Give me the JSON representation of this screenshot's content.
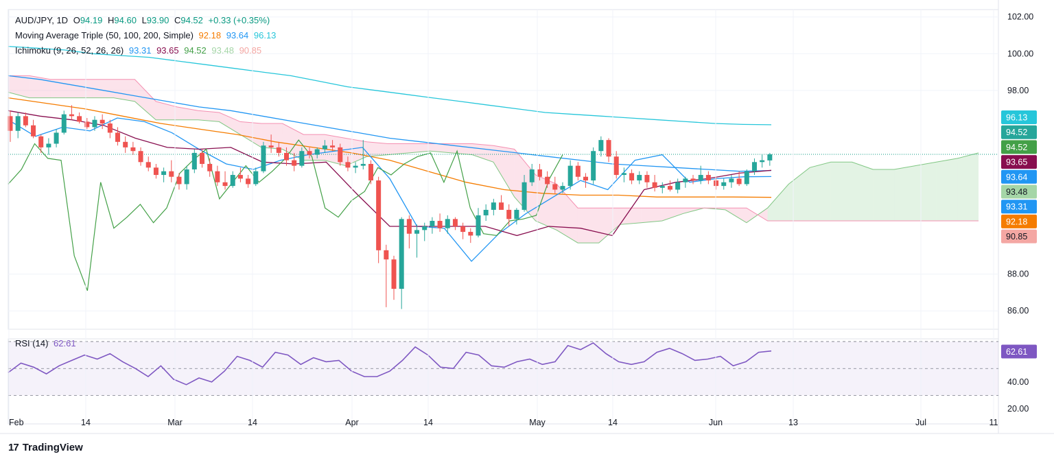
{
  "header": {
    "symbol": "AUD/JPY, 1D",
    "open_label": "O",
    "open": "94.19",
    "high_label": "H",
    "high": "94.60",
    "low_label": "L",
    "low": "93.90",
    "close_label": "C",
    "close": "94.52",
    "change": "+0.33 (+0.35%)"
  },
  "ma": {
    "label": "Moving Average Triple (50, 100, 200, Simple)",
    "v50": "92.18",
    "v100": "93.64",
    "v200": "96.13"
  },
  "ichimoku": {
    "label": "Ichimoku (9, 26, 52, 26, 26)",
    "conversion": "93.31",
    "base": "93.65",
    "lagging": "94.52",
    "leadA": "93.48",
    "leadB": "90.85"
  },
  "rsi": {
    "label": "RSI (14)",
    "value": "62.61"
  },
  "footer": {
    "brand": "TradingView",
    "logo": "17"
  },
  "colors": {
    "up": "#26a69a",
    "down": "#ef5350",
    "ma50": "#f57c00",
    "ma100": "#2196f3",
    "ma200": "#26c6da",
    "conversion": "#2196f3",
    "base": "#880e4f",
    "lagging": "#43a047",
    "spanA": "#81c784",
    "spanB": "#f48fb1",
    "rsi": "#7e57c2",
    "price": "#089981"
  },
  "chart_data": {
    "type": "candlestick",
    "title": "AUD/JPY, 1D",
    "y_range": [
      85.0,
      102.4
    ],
    "y_ticks": [
      "86.00",
      "88.00",
      "98.00",
      "100.00",
      "102.00"
    ],
    "x_ticks": [
      "Feb",
      "14",
      "Mar",
      "14",
      "Apr",
      "14",
      "May",
      "14",
      "Jun",
      "13",
      "Jul",
      "11"
    ],
    "price_badges": [
      {
        "value": "96.13",
        "color": "#26c6da"
      },
      {
        "value": "94.52",
        "color": "#26a69a"
      },
      {
        "value": "94.52",
        "color": "#43a047"
      },
      {
        "value": "93.65",
        "color": "#880e4f"
      },
      {
        "value": "93.64",
        "color": "#2196f3"
      },
      {
        "value": "93.48",
        "color": "#a5d6a7"
      },
      {
        "value": "93.31",
        "color": "#2196f3"
      },
      {
        "value": "92.18",
        "color": "#f57c00"
      },
      {
        "value": "90.85",
        "color": "#f4a7a3"
      }
    ],
    "candles": [
      {
        "o": 96.6,
        "h": 96.9,
        "l": 95.2,
        "c": 95.8
      },
      {
        "o": 95.8,
        "h": 96.8,
        "l": 95.4,
        "c": 96.6
      },
      {
        "o": 96.6,
        "h": 96.8,
        "l": 96.0,
        "c": 96.1
      },
      {
        "o": 96.1,
        "h": 96.4,
        "l": 95.4,
        "c": 95.5
      },
      {
        "o": 95.5,
        "h": 95.6,
        "l": 94.6,
        "c": 94.9
      },
      {
        "o": 94.9,
        "h": 95.4,
        "l": 94.5,
        "c": 95.1
      },
      {
        "o": 95.1,
        "h": 95.9,
        "l": 94.9,
        "c": 95.7
      },
      {
        "o": 95.7,
        "h": 96.9,
        "l": 95.6,
        "c": 96.7
      },
      {
        "o": 96.7,
        "h": 97.2,
        "l": 96.4,
        "c": 96.6
      },
      {
        "o": 96.6,
        "h": 96.8,
        "l": 96.2,
        "c": 96.3
      },
      {
        "o": 96.3,
        "h": 96.5,
        "l": 95.9,
        "c": 96.0
      },
      {
        "o": 96.0,
        "h": 96.6,
        "l": 95.8,
        "c": 96.4
      },
      {
        "o": 96.4,
        "h": 96.7,
        "l": 95.9,
        "c": 96.2
      },
      {
        "o": 96.2,
        "h": 96.4,
        "l": 95.4,
        "c": 95.7
      },
      {
        "o": 95.7,
        "h": 96.0,
        "l": 95.0,
        "c": 95.2
      },
      {
        "o": 95.2,
        "h": 95.5,
        "l": 94.6,
        "c": 94.9
      },
      {
        "o": 94.9,
        "h": 95.2,
        "l": 94.5,
        "c": 94.7
      },
      {
        "o": 94.7,
        "h": 94.9,
        "l": 93.9,
        "c": 94.1
      },
      {
        "o": 94.1,
        "h": 94.4,
        "l": 93.6,
        "c": 93.8
      },
      {
        "o": 93.8,
        "h": 94.0,
        "l": 93.2,
        "c": 93.4
      },
      {
        "o": 93.4,
        "h": 93.8,
        "l": 93.0,
        "c": 93.6
      },
      {
        "o": 93.6,
        "h": 94.2,
        "l": 93.0,
        "c": 93.3
      },
      {
        "o": 93.3,
        "h": 93.5,
        "l": 92.6,
        "c": 92.9
      },
      {
        "o": 92.9,
        "h": 93.9,
        "l": 92.6,
        "c": 93.7
      },
      {
        "o": 93.7,
        "h": 94.8,
        "l": 93.5,
        "c": 94.6
      },
      {
        "o": 94.6,
        "h": 94.8,
        "l": 93.8,
        "c": 94.0
      },
      {
        "o": 94.0,
        "h": 94.3,
        "l": 93.3,
        "c": 93.6
      },
      {
        "o": 93.6,
        "h": 93.9,
        "l": 92.8,
        "c": 93.0
      },
      {
        "o": 93.0,
        "h": 93.6,
        "l": 92.6,
        "c": 92.8
      },
      {
        "o": 92.8,
        "h": 93.6,
        "l": 92.7,
        "c": 93.4
      },
      {
        "o": 93.4,
        "h": 93.8,
        "l": 93.0,
        "c": 93.2
      },
      {
        "o": 93.2,
        "h": 93.4,
        "l": 92.7,
        "c": 92.9
      },
      {
        "o": 92.9,
        "h": 93.8,
        "l": 92.8,
        "c": 93.6
      },
      {
        "o": 93.6,
        "h": 95.2,
        "l": 93.5,
        "c": 95.0
      },
      {
        "o": 95.0,
        "h": 95.6,
        "l": 94.6,
        "c": 94.9
      },
      {
        "o": 94.9,
        "h": 95.2,
        "l": 94.4,
        "c": 94.6
      },
      {
        "o": 94.6,
        "h": 94.9,
        "l": 93.9,
        "c": 94.2
      },
      {
        "o": 94.2,
        "h": 94.6,
        "l": 93.6,
        "c": 93.9
      },
      {
        "o": 93.9,
        "h": 94.9,
        "l": 93.8,
        "c": 94.7
      },
      {
        "o": 94.7,
        "h": 94.9,
        "l": 94.3,
        "c": 94.5
      },
      {
        "o": 94.5,
        "h": 94.9,
        "l": 94.3,
        "c": 94.8
      },
      {
        "o": 94.8,
        "h": 95.3,
        "l": 94.6,
        "c": 95.0
      },
      {
        "o": 95.0,
        "h": 95.3,
        "l": 94.7,
        "c": 94.9
      },
      {
        "o": 94.9,
        "h": 95.1,
        "l": 93.9,
        "c": 94.1
      },
      {
        "o": 94.1,
        "h": 94.4,
        "l": 93.6,
        "c": 93.8
      },
      {
        "o": 93.8,
        "h": 94.1,
        "l": 93.5,
        "c": 93.9
      },
      {
        "o": 93.9,
        "h": 95.3,
        "l": 93.7,
        "c": 94.0
      },
      {
        "o": 94.0,
        "h": 94.2,
        "l": 92.9,
        "c": 93.1
      },
      {
        "o": 93.1,
        "h": 93.3,
        "l": 88.6,
        "c": 89.3
      },
      {
        "o": 89.3,
        "h": 89.6,
        "l": 86.2,
        "c": 88.8
      },
      {
        "o": 88.8,
        "h": 89.0,
        "l": 86.6,
        "c": 87.2
      },
      {
        "o": 87.2,
        "h": 91.1,
        "l": 86.1,
        "c": 91.0
      },
      {
        "o": 91.0,
        "h": 91.2,
        "l": 89.4,
        "c": 90.2
      },
      {
        "o": 90.2,
        "h": 90.7,
        "l": 88.9,
        "c": 90.4
      },
      {
        "o": 90.4,
        "h": 90.8,
        "l": 89.8,
        "c": 90.6
      },
      {
        "o": 90.6,
        "h": 91.1,
        "l": 90.2,
        "c": 90.9
      },
      {
        "o": 90.9,
        "h": 91.3,
        "l": 90.3,
        "c": 90.5
      },
      {
        "o": 90.5,
        "h": 91.2,
        "l": 90.2,
        "c": 91.0
      },
      {
        "o": 91.0,
        "h": 91.1,
        "l": 90.4,
        "c": 90.6
      },
      {
        "o": 90.6,
        "h": 90.8,
        "l": 89.9,
        "c": 90.3
      },
      {
        "o": 90.3,
        "h": 90.5,
        "l": 89.7,
        "c": 90.1
      },
      {
        "o": 90.1,
        "h": 91.6,
        "l": 90.0,
        "c": 91.2
      },
      {
        "o": 91.2,
        "h": 91.8,
        "l": 90.9,
        "c": 91.5
      },
      {
        "o": 91.5,
        "h": 92.1,
        "l": 91.2,
        "c": 91.9
      },
      {
        "o": 91.9,
        "h": 92.3,
        "l": 91.6,
        "c": 91.5
      },
      {
        "o": 91.5,
        "h": 91.8,
        "l": 90.6,
        "c": 91.0
      },
      {
        "o": 91.0,
        "h": 91.6,
        "l": 90.7,
        "c": 91.5
      },
      {
        "o": 91.5,
        "h": 93.4,
        "l": 91.4,
        "c": 93.0
      },
      {
        "o": 93.0,
        "h": 94.0,
        "l": 92.8,
        "c": 93.7
      },
      {
        "o": 93.7,
        "h": 94.0,
        "l": 93.1,
        "c": 93.3
      },
      {
        "o": 93.3,
        "h": 93.6,
        "l": 92.7,
        "c": 92.9
      },
      {
        "o": 92.9,
        "h": 93.3,
        "l": 92.4,
        "c": 92.6
      },
      {
        "o": 92.6,
        "h": 93.0,
        "l": 92.4,
        "c": 92.8
      },
      {
        "o": 92.8,
        "h": 94.2,
        "l": 92.6,
        "c": 93.9
      },
      {
        "o": 93.9,
        "h": 94.1,
        "l": 93.1,
        "c": 93.3
      },
      {
        "o": 93.3,
        "h": 93.5,
        "l": 92.7,
        "c": 93.1
      },
      {
        "o": 93.1,
        "h": 94.9,
        "l": 92.9,
        "c": 94.7
      },
      {
        "o": 94.7,
        "h": 95.5,
        "l": 94.4,
        "c": 95.3
      },
      {
        "o": 95.3,
        "h": 95.4,
        "l": 94.1,
        "c": 94.4
      },
      {
        "o": 94.4,
        "h": 94.7,
        "l": 93.2,
        "c": 93.4
      },
      {
        "o": 93.4,
        "h": 93.8,
        "l": 93.0,
        "c": 93.5
      },
      {
        "o": 93.5,
        "h": 93.7,
        "l": 92.9,
        "c": 93.1
      },
      {
        "o": 93.1,
        "h": 93.6,
        "l": 92.9,
        "c": 93.4
      },
      {
        "o": 93.4,
        "h": 93.6,
        "l": 92.7,
        "c": 93.0
      },
      {
        "o": 93.0,
        "h": 93.4,
        "l": 92.5,
        "c": 92.7
      },
      {
        "o": 92.7,
        "h": 93.0,
        "l": 92.4,
        "c": 92.8
      },
      {
        "o": 92.8,
        "h": 93.1,
        "l": 92.5,
        "c": 92.6
      },
      {
        "o": 92.6,
        "h": 93.2,
        "l": 92.4,
        "c": 93.0
      },
      {
        "o": 93.0,
        "h": 93.3,
        "l": 92.7,
        "c": 93.2
      },
      {
        "o": 93.2,
        "h": 93.4,
        "l": 92.9,
        "c": 93.1
      },
      {
        "o": 93.1,
        "h": 93.9,
        "l": 92.9,
        "c": 93.4
      },
      {
        "o": 93.4,
        "h": 93.6,
        "l": 92.9,
        "c": 93.1
      },
      {
        "o": 93.1,
        "h": 93.3,
        "l": 92.6,
        "c": 92.8
      },
      {
        "o": 92.8,
        "h": 93.2,
        "l": 92.6,
        "c": 93.0
      },
      {
        "o": 93.0,
        "h": 93.4,
        "l": 92.7,
        "c": 93.2
      },
      {
        "o": 93.2,
        "h": 93.6,
        "l": 92.8,
        "c": 92.9
      },
      {
        "o": 92.9,
        "h": 93.7,
        "l": 92.8,
        "c": 93.6
      },
      {
        "o": 93.6,
        "h": 94.3,
        "l": 93.4,
        "c": 94.1
      },
      {
        "o": 94.1,
        "h": 94.5,
        "l": 93.8,
        "c": 94.2
      },
      {
        "o": 94.19,
        "h": 94.6,
        "l": 93.9,
        "c": 94.52
      }
    ],
    "series": [
      {
        "name": "MA 200",
        "values": [
          100.4,
          100.3,
          100.2,
          100.0,
          99.9,
          99.8,
          99.6,
          99.4,
          99.2,
          99.0,
          98.8,
          98.5,
          98.2,
          98.0,
          97.8,
          97.6,
          97.4,
          97.2,
          97.0,
          96.8,
          96.7,
          96.6,
          96.5,
          96.4,
          96.3,
          96.2,
          96.15,
          96.13
        ]
      },
      {
        "name": "MA 100",
        "values": [
          98.8,
          98.6,
          98.3,
          98.0,
          97.7,
          97.4,
          97.1,
          96.9,
          96.6,
          96.3,
          96.0,
          95.7,
          95.4,
          95.2,
          95.0,
          94.8,
          94.6,
          94.4,
          94.2,
          94.0,
          93.9,
          93.8,
          93.7,
          93.6,
          93.64
        ]
      },
      {
        "name": "MA 50",
        "values": [
          97.6,
          97.3,
          97.0,
          96.6,
          96.2,
          95.9,
          95.6,
          95.2,
          94.9,
          94.6,
          94.2,
          93.6,
          93.0,
          92.6,
          92.4,
          92.3,
          92.3,
          92.2,
          92.2,
          92.2,
          92.18
        ]
      },
      {
        "name": "Conversion",
        "values": [
          96.4,
          95.5,
          96.0,
          95.8,
          96.5,
          96.3,
          95.7,
          94.8,
          94.0,
          93.7,
          94.2,
          94.5,
          94.7,
          94.9,
          93.2,
          90.6,
          90.5,
          88.7,
          90.2,
          91.3,
          92.2,
          93.1,
          92.6,
          94.2,
          94.5,
          93.0,
          93.2,
          93.3,
          93.31
        ]
      },
      {
        "name": "Base",
        "values": [
          96.9,
          96.6,
          96.4,
          96.1,
          95.4,
          94.9,
          94.8,
          94.9,
          94.1,
          94.0,
          94.1,
          92.3,
          90.6,
          90.6,
          90.6,
          90.6,
          90.1,
          90.6,
          90.5,
          90.1,
          92.6,
          93.0,
          93.2,
          93.5,
          93.65
        ]
      },
      {
        "name": "Lagging",
        "values": [
          92.9,
          93.7,
          95.1,
          94.3,
          94.2,
          89.0,
          87.1,
          93.0,
          90.5,
          91.1,
          91.8,
          90.8,
          91.6,
          93.5,
          94.2,
          94.8,
          92.1,
          93.0,
          93.9,
          93.0,
          93.6,
          94.3,
          95.3,
          94.4,
          91.6,
          91.1,
          92.0,
          92.5,
          93.8,
          93.4,
          94.0,
          94.4,
          94.6,
          93.0,
          94.7,
          91.6,
          90.2,
          90.1,
          90.9,
          91.0,
          91.2,
          93.2,
          94.5
        ]
      },
      {
        "name": "RSI",
        "values": [
          47,
          54,
          51,
          46,
          52,
          56,
          60,
          57,
          61,
          55,
          50,
          44,
          52,
          42,
          38,
          43,
          40,
          48,
          59,
          56,
          51,
          62,
          60,
          53,
          58,
          55,
          56,
          48,
          44,
          44,
          48,
          56,
          66,
          60,
          51,
          50,
          62,
          60,
          52,
          51,
          55,
          57,
          53,
          55,
          67,
          64,
          69,
          61,
          55,
          53,
          55,
          62,
          65,
          61,
          56,
          57,
          59,
          52,
          55,
          62,
          63
        ]
      }
    ]
  }
}
